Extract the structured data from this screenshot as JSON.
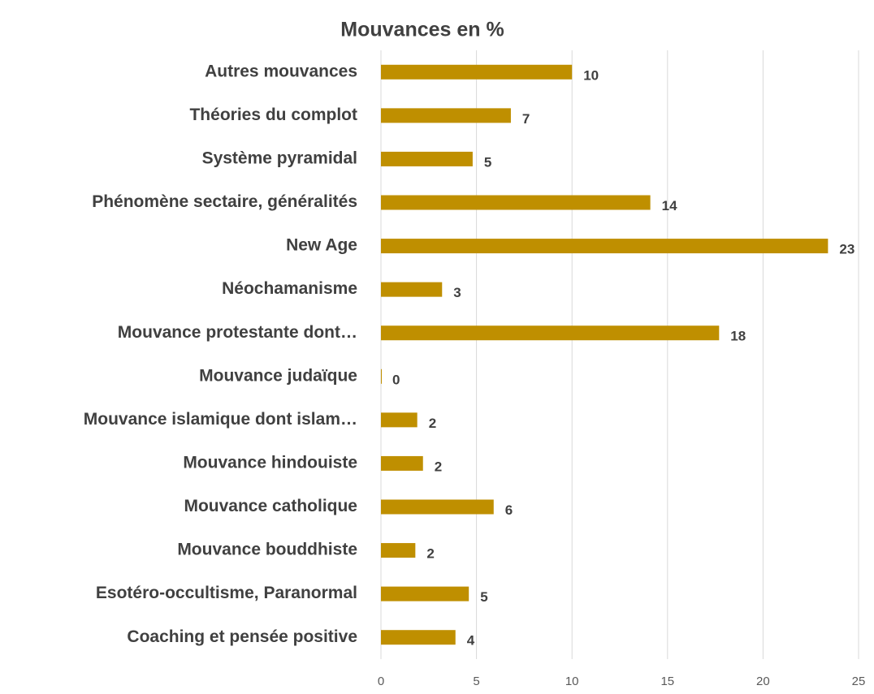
{
  "chart_data": {
    "type": "hbar",
    "title": "Mouvances en %",
    "categories": [
      "Autres mouvances",
      "Théories du complot",
      "Système pyramidal",
      "Phénomène sectaire, généralités",
      "New Age",
      "Néochamanisme",
      "Mouvance protestante dont…",
      "Mouvance judaïque",
      "Mouvance islamique dont islam…",
      "Mouvance hindouiste",
      "Mouvance catholique",
      "Mouvance bouddhiste",
      "Esotéro-occultisme, Paranormal",
      "Coaching et pensée positive"
    ],
    "values": [
      10,
      6.8,
      4.8,
      14.1,
      23.4,
      3.2,
      17.7,
      0,
      1.9,
      2.2,
      5.9,
      1.8,
      4.6,
      3.9
    ],
    "value_labels": [
      "10",
      "7",
      "5",
      "14",
      "23",
      "3",
      "18",
      "0",
      "2",
      "2",
      "6",
      "2",
      "5",
      "4"
    ],
    "color": "#bf8f00",
    "xlim": [
      0,
      25
    ],
    "xticks": [
      0,
      5,
      10,
      15,
      20,
      25
    ],
    "grid": true
  }
}
